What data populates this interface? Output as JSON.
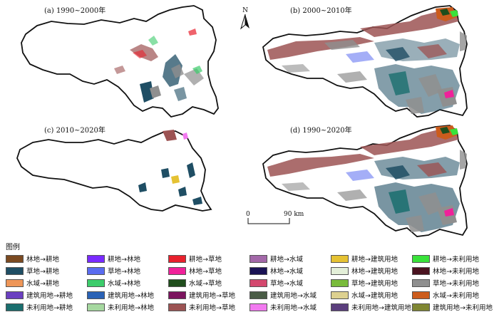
{
  "panels": [
    {
      "label": "(a) 1990~2000年"
    },
    {
      "label": "(b) 2000~2010年"
    },
    {
      "label": "(c) 2010~2020年"
    },
    {
      "label": "(d) 1990~2020年"
    }
  ],
  "north_arrow": {
    "letter": "N"
  },
  "scale_bar": {
    "start": "0",
    "end": "90 km"
  },
  "legend": {
    "title": "图例",
    "items": [
      {
        "label": "林地→耕地",
        "color": "#7b4a21"
      },
      {
        "label": "耕地→林地",
        "color": "#7a2bff"
      },
      {
        "label": "耕地→草地",
        "color": "#e8212d"
      },
      {
        "label": "耕地→水域",
        "color": "#a368a9"
      },
      {
        "label": "耕地→建筑用地",
        "color": "#e5c233"
      },
      {
        "label": "耕地→未利用地",
        "color": "#39e23a"
      },
      {
        "label": "草地→耕地",
        "color": "#1f4e64"
      },
      {
        "label": "草地→林地",
        "color": "#5a6cf0"
      },
      {
        "label": "林地→草地",
        "color": "#f0219a"
      },
      {
        "label": "林地→水域",
        "color": "#1a1355"
      },
      {
        "label": "林地→建筑用地",
        "color": "#e3efd8"
      },
      {
        "label": "林地→未利用地",
        "color": "#4a1320"
      },
      {
        "label": "水域→耕地",
        "color": "#ee9658"
      },
      {
        "label": "水域→林地",
        "color": "#3ccc6b"
      },
      {
        "label": "水域→草地",
        "color": "#1f4d1c"
      },
      {
        "label": "草地→水域",
        "color": "#d4486e"
      },
      {
        "label": "草地→建筑用地",
        "color": "#79bb3b"
      },
      {
        "label": "草地→未利用地",
        "color": "#8f8f8f"
      },
      {
        "label": "建筑用地→耕地",
        "color": "#6a3fc0"
      },
      {
        "label": "建筑用地→林地",
        "color": "#2a62b6"
      },
      {
        "label": "建筑用地→草地",
        "color": "#7b145e"
      },
      {
        "label": "建筑用地→水域",
        "color": "#4a5d46"
      },
      {
        "label": "水域→建筑用地",
        "color": "#ddd190"
      },
      {
        "label": "水域→未利用地",
        "color": "#cc5c1d"
      },
      {
        "label": "未利用地→耕地",
        "color": "#1a6e6e"
      },
      {
        "label": "未利用地→林地",
        "color": "#a6d8a0"
      },
      {
        "label": "未利用地→草地",
        "color": "#9c5353"
      },
      {
        "label": "未利用地→水域",
        "color": "#f27af0"
      },
      {
        "label": "未利用地→建筑用地",
        "color": "#5b3f7d"
      },
      {
        "label": "建筑用地→未利用地",
        "color": "#7f8633"
      }
    ]
  }
}
